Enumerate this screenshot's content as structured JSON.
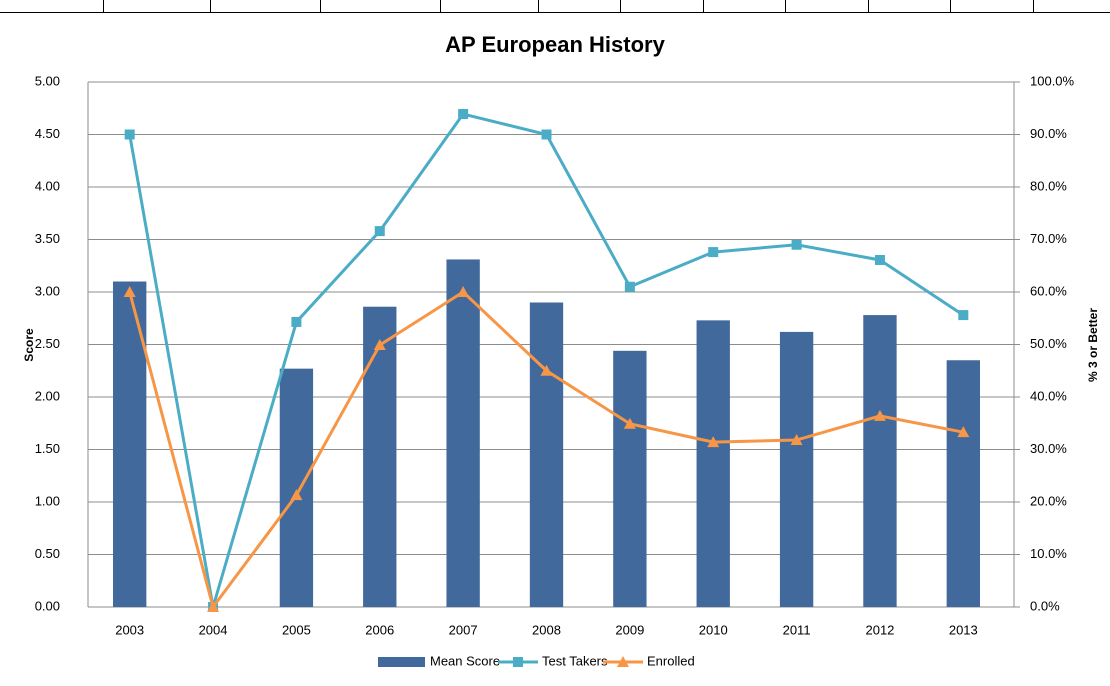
{
  "chart_data": {
    "type": "bar",
    "title": "AP European History",
    "y_label": "Score",
    "y2_label": "% 3 or Better",
    "categories": [
      "2003",
      "2004",
      "2005",
      "2006",
      "2007",
      "2008",
      "2009",
      "2010",
      "2011",
      "2012",
      "2013"
    ],
    "series": [
      {
        "name": "Mean Score",
        "type": "bar",
        "axis": "y",
        "color": "#41699b",
        "values": [
          3.1,
          0,
          2.27,
          2.86,
          3.31,
          2.9,
          2.44,
          2.73,
          2.62,
          2.78,
          2.35
        ]
      },
      {
        "name": "Test Takers",
        "type": "line",
        "axis": "y2",
        "color": "#4bacc6",
        "marker": "square",
        "values": [
          90,
          0,
          54.3,
          71.6,
          93.9,
          90,
          61.0,
          67.6,
          69.0,
          66.1,
          55.6
        ]
      },
      {
        "name": "Enrolled",
        "type": "line",
        "axis": "y2",
        "color": "#f79646",
        "marker": "triangle",
        "values": [
          60,
          0,
          21.3,
          49.9,
          60,
          45,
          34.9,
          31.4,
          31.8,
          36.4,
          33.3
        ]
      }
    ],
    "ylim": [
      0,
      5
    ],
    "yticks": [
      {
        "value": 0,
        "label": "0.00"
      },
      {
        "value": 0.5,
        "label": "0.50"
      },
      {
        "value": 1,
        "label": "1.00"
      },
      {
        "value": 1.5,
        "label": "1.50"
      },
      {
        "value": 2,
        "label": "2.00"
      },
      {
        "value": 2.5,
        "label": "2.50"
      },
      {
        "value": 3,
        "label": "3.00"
      },
      {
        "value": 3.5,
        "label": "3.50"
      },
      {
        "value": 4,
        "label": "4.00"
      },
      {
        "value": 4.5,
        "label": "4.50"
      },
      {
        "value": 5,
        "label": "5.00"
      }
    ],
    "y2lim": [
      0,
      100
    ],
    "y2ticks": [
      {
        "value": 0,
        "label": "0.0%"
      },
      {
        "value": 10,
        "label": "10.0%"
      },
      {
        "value": 20,
        "label": "20.0%"
      },
      {
        "value": 30,
        "label": "30.0%"
      },
      {
        "value": 40,
        "label": "40.0%"
      },
      {
        "value": 50,
        "label": "50.0%"
      },
      {
        "value": 60,
        "label": "60.0%"
      },
      {
        "value": 70,
        "label": "70.0%"
      },
      {
        "value": 80,
        "label": "80.0%"
      },
      {
        "value": 90,
        "label": "90.0%"
      },
      {
        "value": 100,
        "label": "100.0%"
      }
    ],
    "grid": true,
    "legend": "bottom"
  }
}
